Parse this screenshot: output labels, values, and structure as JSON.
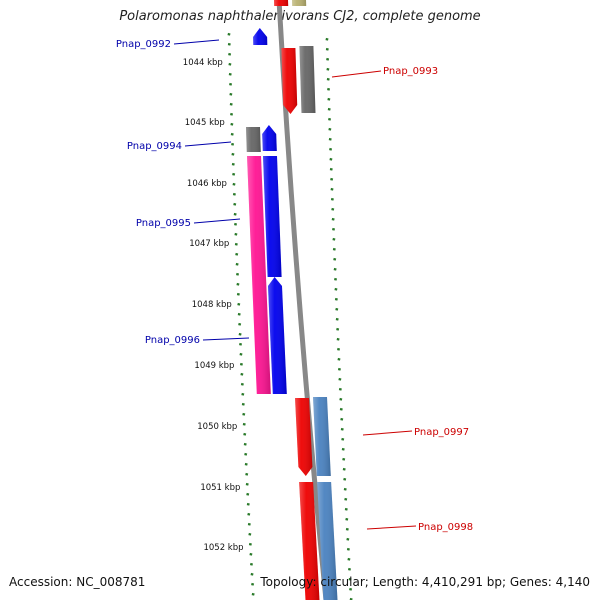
{
  "title": "Polaromonas naphthalenivorans CJ2, complete genome",
  "footer": {
    "accession": "Accession: NC_008781",
    "topology": "Topology: circular; Length: 4,410,291 bp; Genes: 4,140"
  },
  "colors": {
    "forward_label": "#0000aa",
    "reverse_label": "#cc0000",
    "tick": "#2a7a2a",
    "backbone": "#888888"
  },
  "scale": {
    "unit": "kbp",
    "ticks": [
      "1044 kbp",
      "1045 kbp",
      "1046 kbp",
      "1047 kbp",
      "1048 kbp",
      "1049 kbp",
      "1050 kbp",
      "1051 kbp",
      "1052 kbp"
    ]
  },
  "genes": [
    {
      "label": "Pnap_0992",
      "strand": "forward",
      "color": "#0000ee"
    },
    {
      "label": "Pnap_0993",
      "strand": "reverse",
      "color": "#ee0000"
    },
    {
      "label": "Pnap_0994",
      "strand": "forward",
      "color": "#0000ee"
    },
    {
      "label": "Pnap_0995",
      "strand": "forward",
      "color": "#ff1493"
    },
    {
      "label": "Pnap_0996",
      "strand": "forward",
      "color": "#0000ee"
    },
    {
      "label": "Pnap_0997",
      "strand": "reverse",
      "color": "#ee0000"
    },
    {
      "label": "Pnap_0998",
      "strand": "reverse",
      "color": "#ee0000"
    }
  ],
  "unlabeled_features": [
    {
      "strand": "forward",
      "color": "#666666"
    },
    {
      "strand": "reverse",
      "color": "#666666"
    },
    {
      "strand": "reverse",
      "color": "#4a82c0"
    },
    {
      "strand": "reverse",
      "color": "#4a82c0"
    },
    {
      "strand": "reverse",
      "color": "#ee0000"
    },
    {
      "strand": "reverse",
      "color": "#b8b070"
    }
  ]
}
